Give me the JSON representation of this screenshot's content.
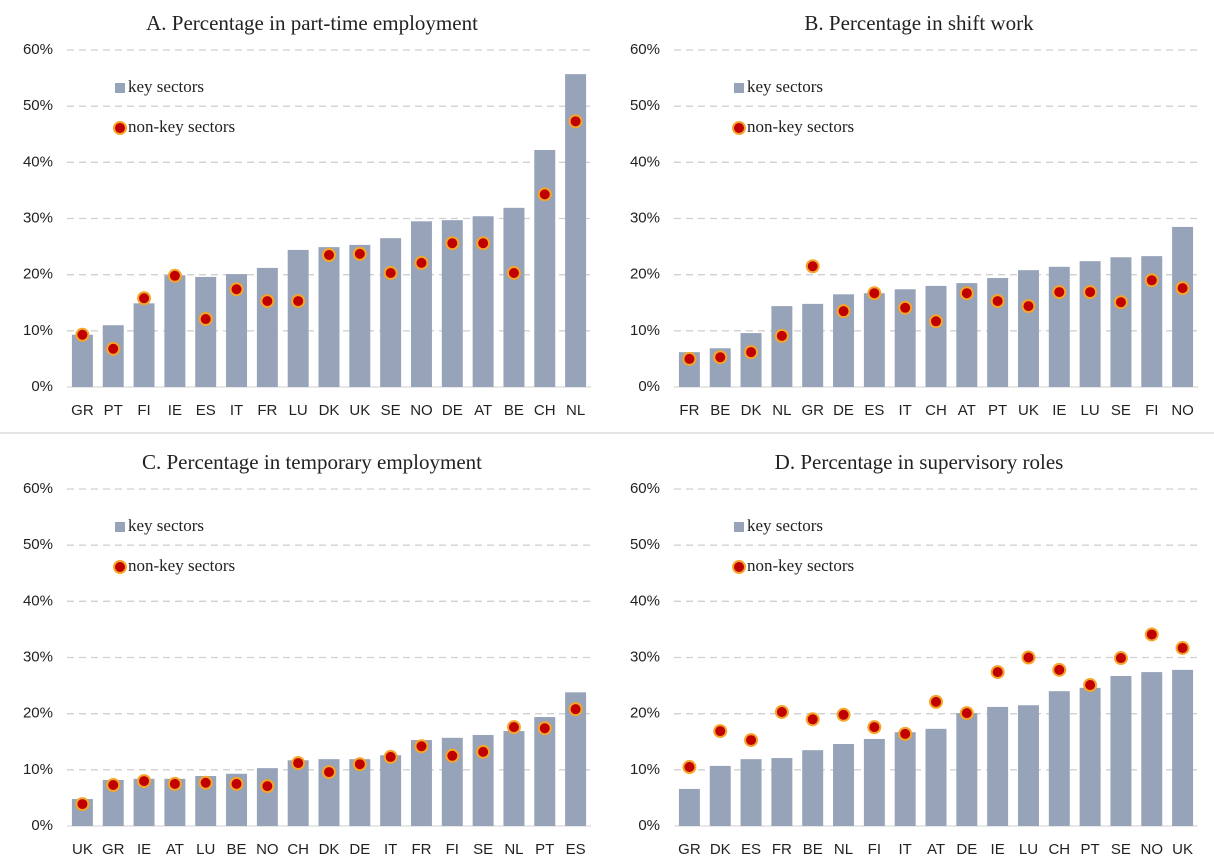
{
  "chart_data": [
    {
      "type": "bar",
      "title": "A. Percentage in part-time employment",
      "categories": [
        "GR",
        "PT",
        "FI",
        "IE",
        "ES",
        "IT",
        "FR",
        "LU",
        "DK",
        "UK",
        "SE",
        "NO",
        "DE",
        "AT",
        "BE",
        "CH",
        "NL"
      ],
      "series": [
        {
          "name": "key sectors",
          "type": "bar",
          "color": "#97a3b8",
          "values": [
            9.3,
            11.0,
            14.9,
            19.9,
            19.6,
            20.1,
            21.2,
            24.4,
            24.9,
            25.3,
            26.5,
            29.5,
            29.7,
            30.4,
            31.9,
            42.2,
            55.7
          ]
        },
        {
          "name": "non-key sectors",
          "type": "dot",
          "color": "#c00000",
          "values": [
            9.3,
            6.8,
            15.8,
            19.8,
            12.1,
            17.4,
            15.3,
            15.3,
            23.5,
            23.7,
            20.3,
            22.1,
            25.6,
            25.6,
            20.3,
            34.3,
            47.3
          ]
        }
      ],
      "ylim": [
        0,
        60
      ],
      "yticks": [
        {
          "value": 0,
          "label": "0%"
        },
        {
          "value": 10,
          "label": "10%"
        },
        {
          "value": 20,
          "label": "20%"
        },
        {
          "value": 30,
          "label": "30%"
        },
        {
          "value": 40,
          "label": "40%"
        },
        {
          "value": 50,
          "label": "50%"
        },
        {
          "value": 60,
          "label": "60%"
        }
      ],
      "grid": true,
      "legend": "upper left"
    },
    {
      "type": "bar",
      "title": "B. Percentage in shift work",
      "categories": [
        "FR",
        "BE",
        "DK",
        "NL",
        "GR",
        "DE",
        "ES",
        "IT",
        "CH",
        "AT",
        "PT",
        "UK",
        "IE",
        "LU",
        "SE",
        "FI",
        "NO"
      ],
      "series": [
        {
          "name": "key sectors",
          "type": "bar",
          "color": "#97a3b8",
          "values": [
            6.2,
            6.9,
            9.6,
            14.4,
            14.8,
            16.5,
            16.7,
            17.4,
            18.0,
            18.5,
            19.4,
            20.8,
            21.4,
            22.4,
            23.1,
            23.3,
            28.5
          ]
        },
        {
          "name": "non-key sectors",
          "type": "dot",
          "color": "#c00000",
          "values": [
            5.0,
            5.3,
            6.2,
            9.1,
            21.5,
            13.5,
            16.7,
            14.1,
            11.7,
            16.7,
            15.3,
            14.4,
            16.9,
            16.9,
            15.1,
            19.0,
            17.6
          ]
        }
      ],
      "ylim": [
        0,
        60
      ],
      "yticks": [
        {
          "value": 0,
          "label": "0%"
        },
        {
          "value": 10,
          "label": "10%"
        },
        {
          "value": 20,
          "label": "20%"
        },
        {
          "value": 30,
          "label": "30%"
        },
        {
          "value": 40,
          "label": "40%"
        },
        {
          "value": 50,
          "label": "50%"
        },
        {
          "value": 60,
          "label": "60%"
        }
      ],
      "grid": true,
      "legend": "upper left"
    },
    {
      "type": "bar",
      "title": "C. Percentage in temporary employment",
      "categories": [
        "UK",
        "GR",
        "IE",
        "AT",
        "LU",
        "BE",
        "NO",
        "CH",
        "DK",
        "DE",
        "IT",
        "FR",
        "FI",
        "SE",
        "NL",
        "PT",
        "ES"
      ],
      "series": [
        {
          "name": "key sectors",
          "type": "bar",
          "color": "#97a3b8",
          "values": [
            4.8,
            8.2,
            8.4,
            8.4,
            8.9,
            9.3,
            10.3,
            11.7,
            11.9,
            11.9,
            12.6,
            15.3,
            15.7,
            16.2,
            16.9,
            19.4,
            23.8
          ]
        },
        {
          "name": "non-key sectors",
          "type": "dot",
          "color": "#c00000",
          "values": [
            3.9,
            7.3,
            8.0,
            7.5,
            7.7,
            7.5,
            7.1,
            11.2,
            9.6,
            11.0,
            12.3,
            14.2,
            12.5,
            13.2,
            17.6,
            17.4,
            20.8
          ]
        }
      ],
      "ylim": [
        0,
        60
      ],
      "yticks": [
        {
          "value": 0,
          "label": "0%"
        },
        {
          "value": 10,
          "label": "10%"
        },
        {
          "value": 20,
          "label": "20%"
        },
        {
          "value": 30,
          "label": "30%"
        },
        {
          "value": 40,
          "label": "40%"
        },
        {
          "value": 50,
          "label": "50%"
        },
        {
          "value": 60,
          "label": "60%"
        }
      ],
      "grid": true,
      "legend": "upper left"
    },
    {
      "type": "bar",
      "title": "D. Percentage in supervisory roles",
      "categories": [
        "GR",
        "DK",
        "ES",
        "FR",
        "BE",
        "NL",
        "FI",
        "IT",
        "AT",
        "DE",
        "IE",
        "LU",
        "CH",
        "PT",
        "SE",
        "NO",
        "UK"
      ],
      "series": [
        {
          "name": "key sectors",
          "type": "bar",
          "color": "#97a3b8",
          "values": [
            6.6,
            10.7,
            11.9,
            12.1,
            13.5,
            14.6,
            15.5,
            16.7,
            17.3,
            20.1,
            21.2,
            21.5,
            24.0,
            24.6,
            26.7,
            27.4,
            27.8
          ]
        },
        {
          "name": "non-key sectors",
          "type": "dot",
          "color": "#c00000",
          "values": [
            10.5,
            16.9,
            15.3,
            20.3,
            19.0,
            19.8,
            17.6,
            16.4,
            22.1,
            20.1,
            27.4,
            30.0,
            27.8,
            25.1,
            29.9,
            34.1,
            31.7
          ]
        }
      ],
      "ylim": [
        0,
        60
      ],
      "yticks": [
        {
          "value": 0,
          "label": "0%"
        },
        {
          "value": 10,
          "label": "10%"
        },
        {
          "value": 20,
          "label": "20%"
        },
        {
          "value": 30,
          "label": "30%"
        },
        {
          "value": 40,
          "label": "40%"
        },
        {
          "value": 50,
          "label": "50%"
        },
        {
          "value": 60,
          "label": "60%"
        }
      ],
      "grid": true,
      "legend": "upper left"
    }
  ]
}
